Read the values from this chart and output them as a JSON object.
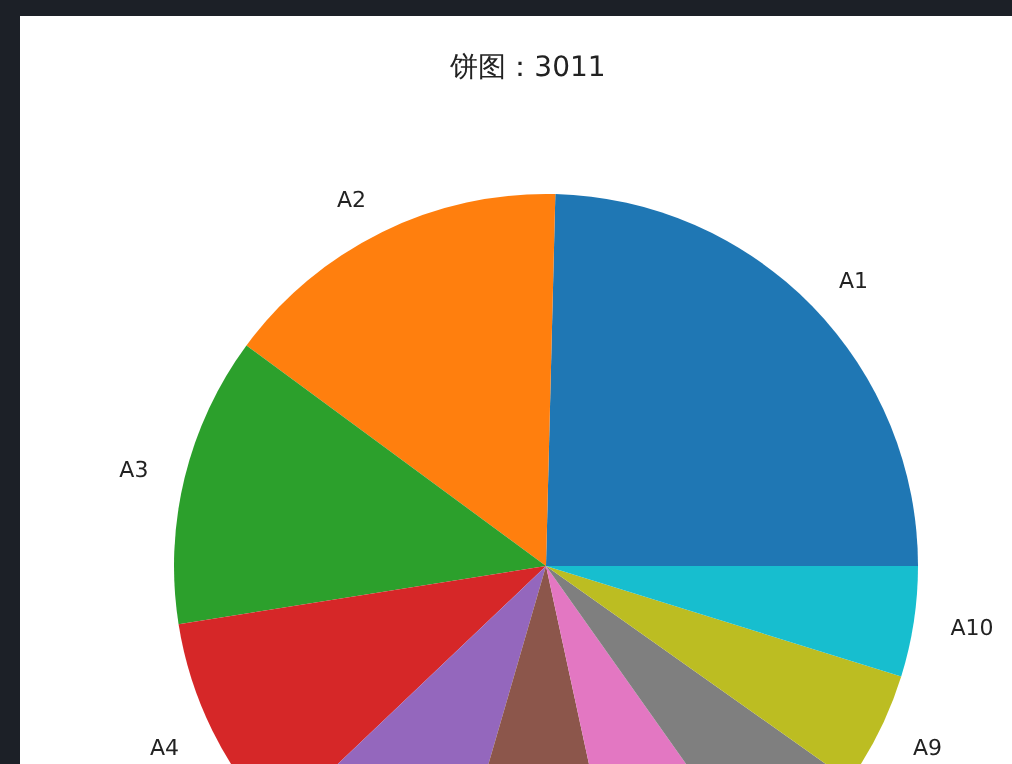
{
  "chart_data": {
    "type": "pie",
    "title": "饼图：3011",
    "categories": [
      "A1",
      "A2",
      "A3",
      "A4",
      null,
      null,
      null,
      null,
      "A9",
      "A10"
    ],
    "values": [
      24.6,
      15.3,
      12.6,
      9.6,
      8.4,
      7.9,
      6.4,
      5.4,
      5.0,
      4.8
    ],
    "colors": [
      "#1f77b4",
      "#ff7f0e",
      "#2ca02c",
      "#d62728",
      "#9467bd",
      "#8c564b",
      "#e377c2",
      "#7f7f7f",
      "#bcbd22",
      "#17becf"
    ],
    "legend": false
  }
}
